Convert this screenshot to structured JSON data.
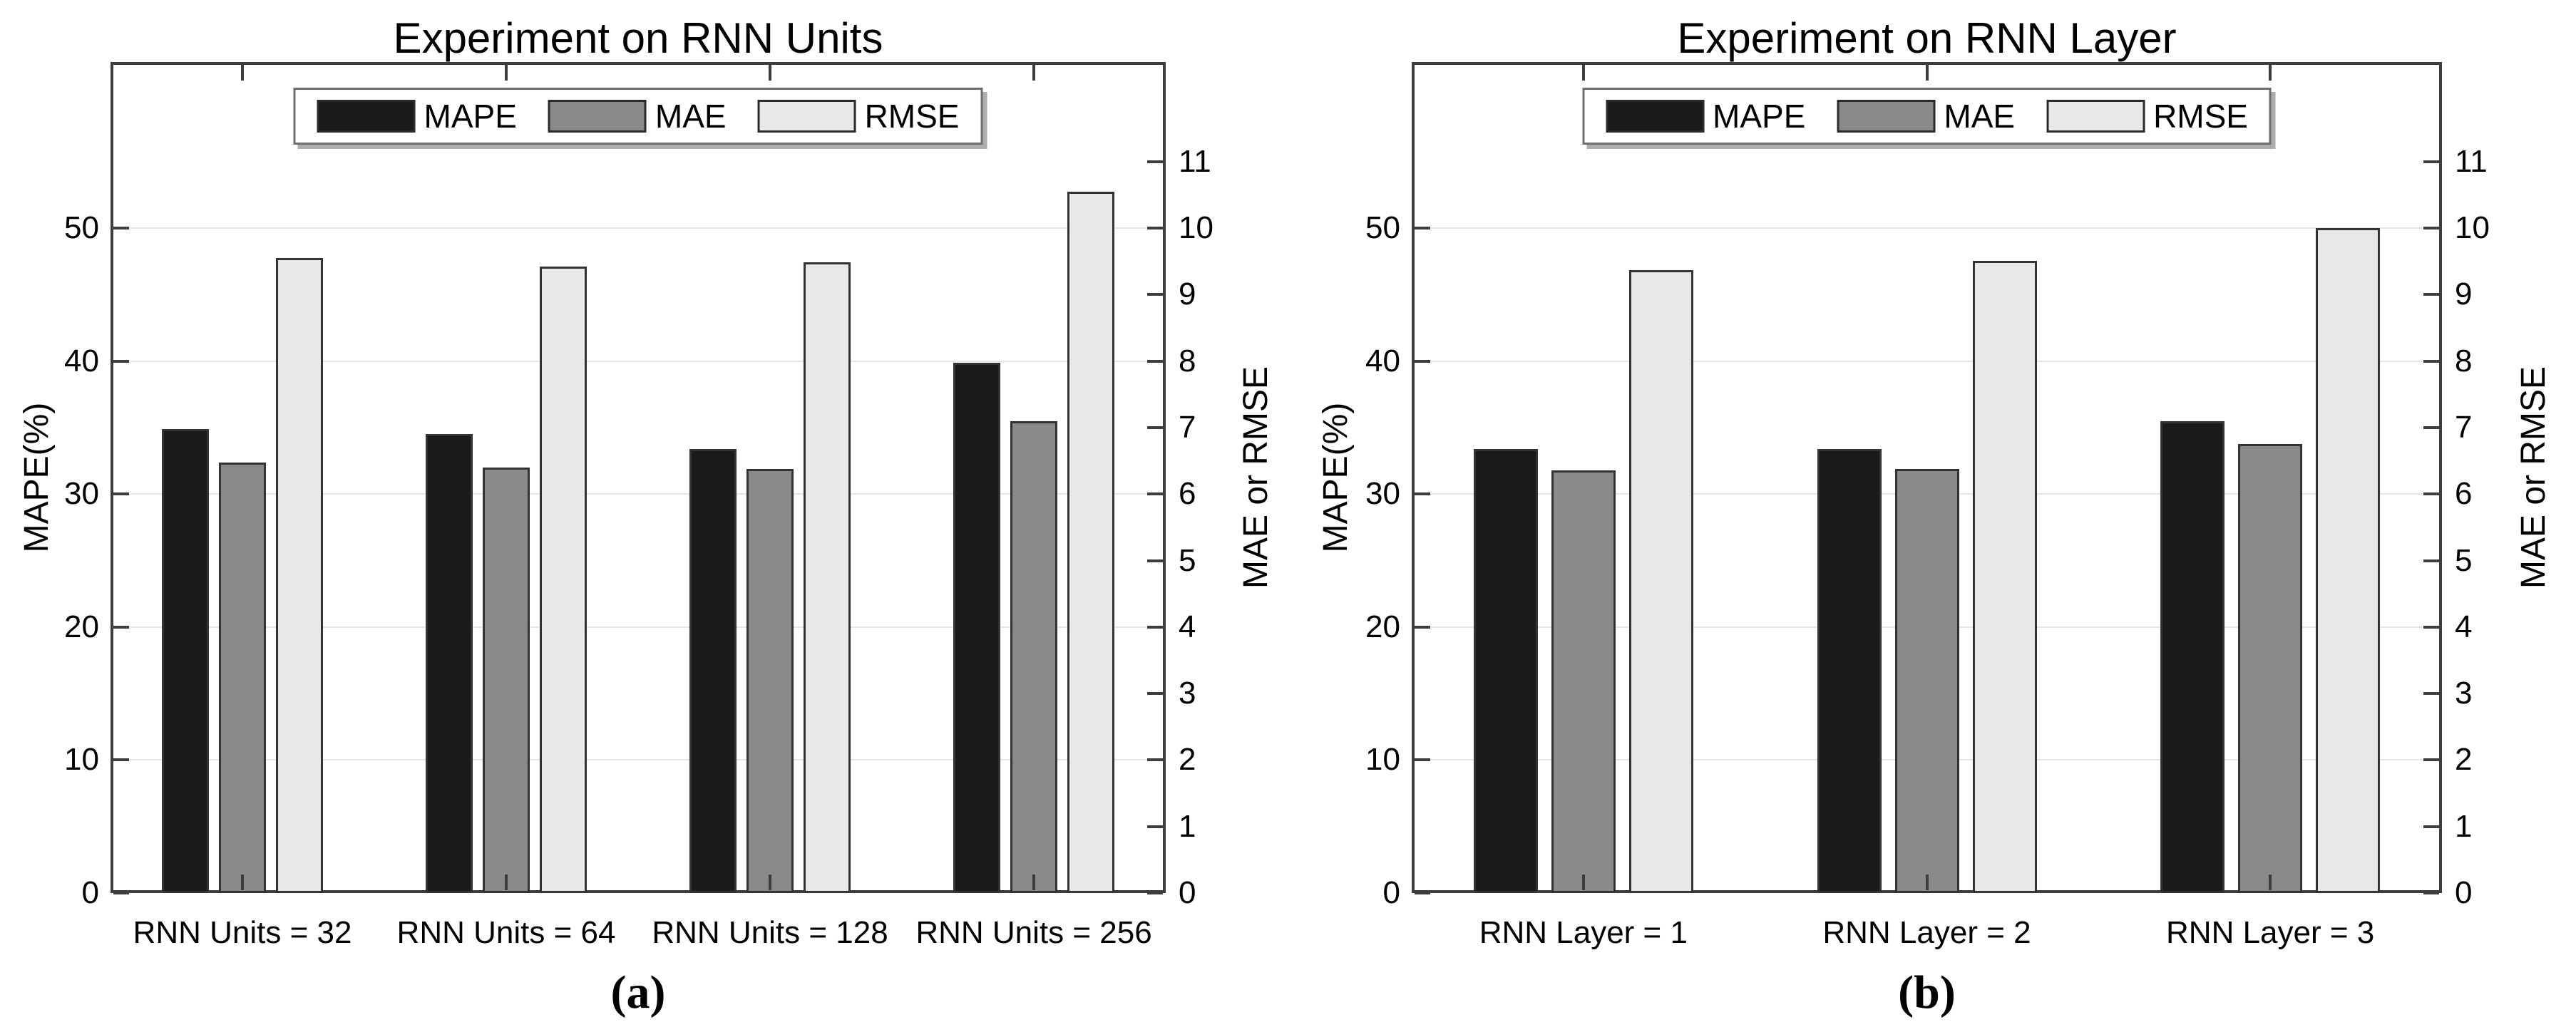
{
  "figure": {
    "background": "#ffffff",
    "text_color": "#000000",
    "axis_color": "#3d3d3d",
    "grid_color": "#e6e6e6",
    "bar_edge_color": "#333333",
    "series_colors": {
      "MAPE": "#1b1b1b",
      "MAE": "#8a8a8a",
      "RMSE": "#e8e8e8"
    }
  },
  "chart_data": [
    {
      "type": "bar",
      "title": "Experiment on RNN Units",
      "caption": "(a)",
      "categories": [
        "RNN Units = 32",
        "RNN Units = 64",
        "RNN Units = 128",
        "RNN Units = 256"
      ],
      "series": [
        {
          "name": "MAPE",
          "axis": "left",
          "color_key": "MAPE",
          "values": [
            34.9,
            34.5,
            33.4,
            39.9
          ]
        },
        {
          "name": "MAE",
          "axis": "right",
          "color_key": "MAE",
          "values": [
            6.48,
            6.4,
            6.38,
            7.1
          ]
        },
        {
          "name": "RMSE",
          "axis": "right",
          "color_key": "RMSE",
          "values": [
            9.55,
            9.42,
            9.49,
            10.55
          ]
        }
      ],
      "left_axis": {
        "label": "MAPE(%)",
        "ticks": [
          0,
          10,
          20,
          30,
          40,
          50
        ],
        "max": 62.5
      },
      "right_axis": {
        "label": "MAE or RMSE",
        "ticks": [
          0,
          1,
          2,
          3,
          4,
          5,
          6,
          7,
          8,
          9,
          10,
          11
        ],
        "max": 12.5
      },
      "grid_left_values": [
        10,
        20,
        30,
        40,
        50
      ],
      "legend": [
        "MAPE",
        "MAE",
        "RMSE"
      ],
      "legend_position": "top-center",
      "grid": "on"
    },
    {
      "type": "bar",
      "title": "Experiment on RNN Layer",
      "caption": "(b)",
      "categories": [
        "RNN Layer = 1",
        "RNN Layer = 2",
        "RNN Layer = 3"
      ],
      "series": [
        {
          "name": "MAPE",
          "axis": "left",
          "color_key": "MAPE",
          "values": [
            33.4,
            33.4,
            35.5
          ]
        },
        {
          "name": "MAE",
          "axis": "right",
          "color_key": "MAE",
          "values": [
            6.36,
            6.38,
            6.75
          ]
        },
        {
          "name": "RMSE",
          "axis": "right",
          "color_key": "RMSE",
          "values": [
            9.37,
            9.51,
            10.0
          ]
        }
      ],
      "left_axis": {
        "label": "MAPE(%)",
        "ticks": [
          0,
          10,
          20,
          30,
          40,
          50
        ],
        "max": 62.5
      },
      "right_axis": {
        "label": "MAE or RMSE",
        "ticks": [
          0,
          1,
          2,
          3,
          4,
          5,
          6,
          7,
          8,
          9,
          10,
          11
        ],
        "max": 12.5
      },
      "grid_left_values": [
        10,
        20,
        30,
        40,
        50
      ],
      "legend": [
        "MAPE",
        "MAE",
        "RMSE"
      ],
      "legend_position": "top-center",
      "grid": "on"
    }
  ]
}
